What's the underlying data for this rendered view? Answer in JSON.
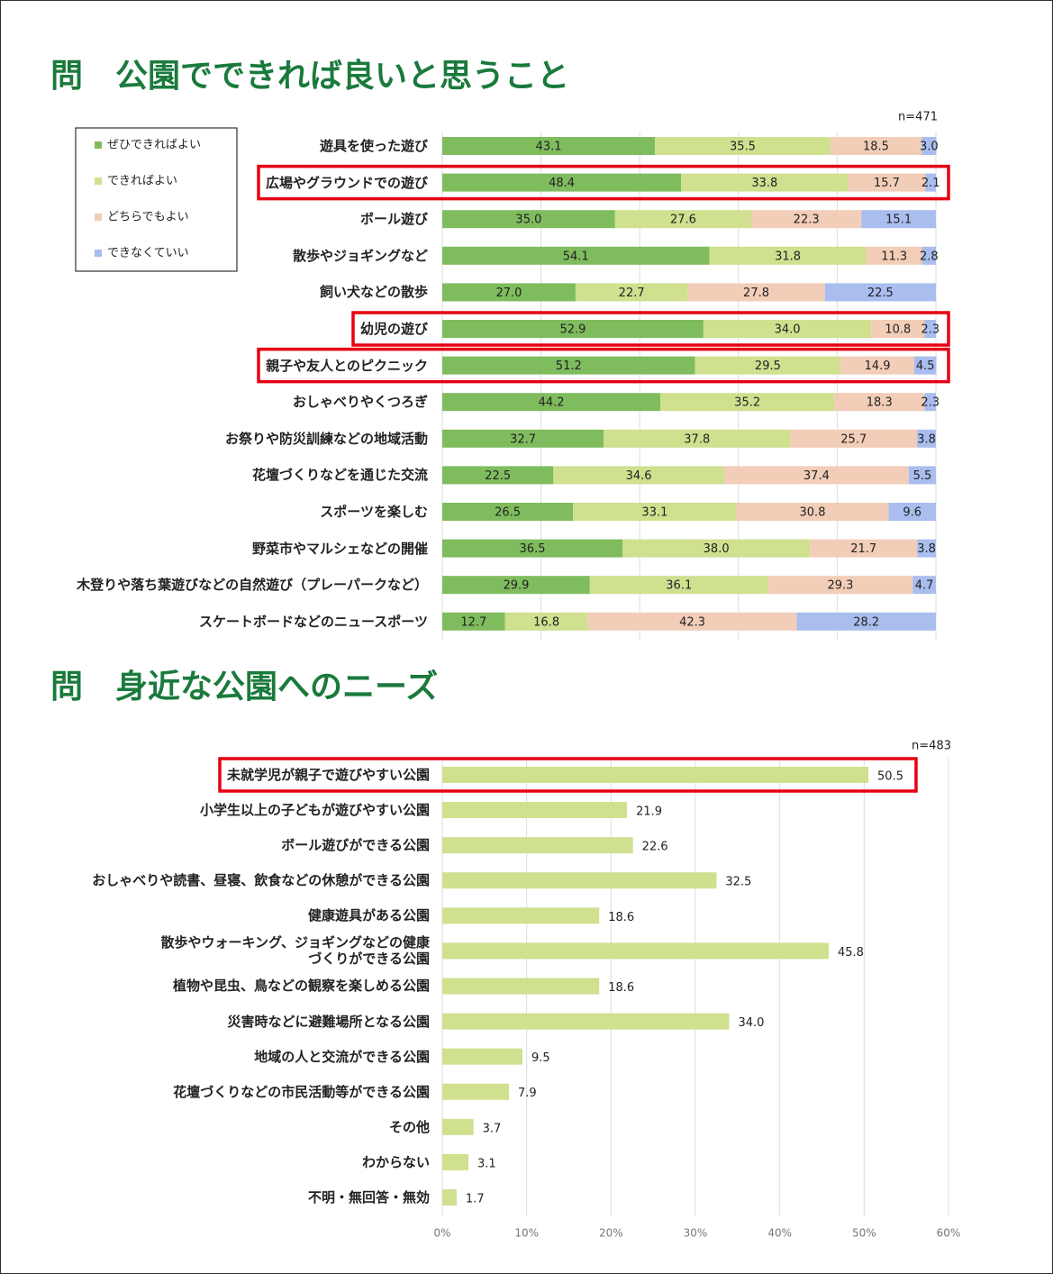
{
  "chart_data": [
    {
      "type": "stacked_bar",
      "orientation": "horizontal",
      "title": "問　公園でできれば良いと思うこと",
      "note": "n=471",
      "categories": [
        "遊具を使った遊び",
        "広場やグラウンドでの遊び",
        "ボール遊び",
        "散歩やジョギングなど",
        "飼い犬などの散歩",
        "幼児の遊び",
        "親子や友人とのピクニック",
        "おしゃべりやくつろぎ",
        "お祭りや防災訓練などの地域活動",
        "花壇づくりなどを通じた交流",
        "スポーツを楽しむ",
        "野菜市やマルシェなどの開催",
        "木登りや落ち葉遊びなどの自然遊び（プレーパークなど）",
        "スケートボードなどのニュースポーツ"
      ],
      "series": [
        {
          "name": "ぜひできればよい",
          "color": "#7fbc5e",
          "values": [
            43.1,
            48.4,
            35.0,
            54.1,
            27.0,
            52.9,
            51.2,
            44.2,
            32.7,
            22.5,
            26.5,
            36.5,
            29.9,
            12.7
          ],
          "value_labels": [
            "43.1",
            "48.4",
            "35.0",
            "54.1",
            "27.0",
            "52.9",
            "51.2",
            "44.2",
            "32.7",
            "22.5",
            "26.5",
            "36.5",
            "29.9",
            "12.7"
          ]
        },
        {
          "name": "できればよい",
          "color": "#cfe08f",
          "values": [
            35.5,
            33.8,
            27.6,
            31.8,
            22.7,
            34.0,
            29.5,
            35.2,
            37.8,
            34.6,
            33.1,
            38.0,
            36.1,
            16.8
          ],
          "value_labels": [
            "35.5",
            "33.8",
            "27.6",
            "31.8",
            "22.7",
            "34.0",
            "29.5",
            "35.2",
            "37.8",
            "34.6",
            "33.1",
            "38.0",
            "36.1",
            "16.8"
          ]
        },
        {
          "name": "どちらでもよい",
          "color": "#f2cdb8",
          "values": [
            18.5,
            15.7,
            22.3,
            11.3,
            27.8,
            10.8,
            14.9,
            18.3,
            25.7,
            37.4,
            30.8,
            21.7,
            29.3,
            42.3
          ],
          "value_labels": [
            "18.5",
            "15.7",
            "22.3",
            "11.3",
            "27.8",
            "10.8",
            "14.9",
            "18.3",
            "25.7",
            "37.4",
            "30.8",
            "21.7",
            "29.3",
            "42.3"
          ]
        },
        {
          "name": "できなくていい",
          "color": "#a9bdef",
          "values": [
            3.0,
            2.1,
            15.1,
            2.8,
            22.5,
            2.3,
            4.5,
            2.3,
            3.8,
            5.5,
            9.6,
            3.8,
            4.7,
            28.2
          ],
          "value_labels": [
            "3.0",
            "2.1",
            "15.1",
            "2.8",
            "22.5",
            "2.3",
            "4.5",
            "2.3",
            "3.8",
            "5.5",
            "9.6",
            "3.8",
            "4.7",
            "28.2"
          ]
        }
      ],
      "xlim": [
        0,
        100
      ],
      "xticks": [
        0,
        20,
        40,
        60,
        80,
        100
      ],
      "grid": true,
      "legend": "left",
      "highlight": [
        1,
        5,
        6
      ]
    },
    {
      "type": "bar",
      "orientation": "horizontal",
      "title": "問　身近な公園へのニーズ",
      "note": "n=483",
      "categories": [
        "未就学児が親子で遊びやすい公園",
        "小学生以上の子どもが遊びやすい公園",
        "ボール遊びができる公園",
        "おしゃべりや読書、昼寝、飲食などの休憩ができる公園",
        "健康遊具がある公園",
        "散歩やウォーキング、ジョギングなどの健康\nづくりができる公園",
        "植物や昆虫、鳥などの観察を楽しめる公園",
        "災害時などに避難場所となる公園",
        "地域の人と交流ができる公園",
        "花壇づくりなどの市民活動等ができる公園",
        "その他",
        "わからない",
        "不明・無回答・無効"
      ],
      "values": [
        50.5,
        21.9,
        22.6,
        32.5,
        18.6,
        45.8,
        18.6,
        34.0,
        9.5,
        7.9,
        3.7,
        3.1,
        1.7
      ],
      "value_labels": [
        "50.5",
        "21.9",
        "22.6",
        "32.5",
        "18.6",
        "45.8",
        "18.6",
        "34.0",
        "9.5",
        "7.9",
        "3.7",
        "3.1",
        "1.7"
      ],
      "color": "#cfe08f",
      "xlim": [
        0,
        60
      ],
      "xticks": [
        {
          "value": 0,
          "label": "0%"
        },
        {
          "value": 10,
          "label": "10%"
        },
        {
          "value": 20,
          "label": "20%"
        },
        {
          "value": 30,
          "label": "30%"
        },
        {
          "value": 40,
          "label": "40%"
        },
        {
          "value": 50,
          "label": "50%"
        },
        {
          "value": 60,
          "label": "60%"
        }
      ],
      "grid": true,
      "highlight": [
        0
      ]
    }
  ]
}
